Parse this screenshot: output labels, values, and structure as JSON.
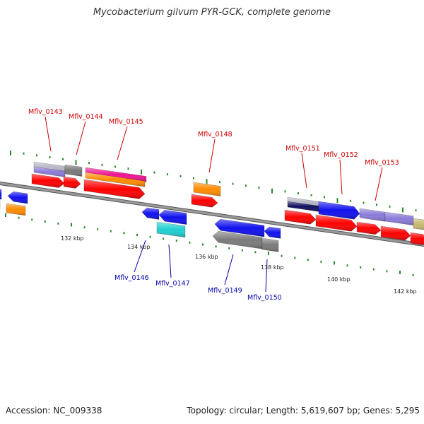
{
  "title": "Mycobacterium gilvum PYR-GCK, complete genome",
  "footer": {
    "accession": "Accession: NC_009338",
    "summary": "Topology: circular; Length: 5,619,607 bp; Genes: 5,295"
  },
  "colors": {
    "backbone": "#8a8a8a",
    "tick": "#2a8a2a",
    "label_forward": "#cc0000",
    "label_reverse": "#0000aa",
    "red": "#ff0000",
    "blue": "#1010ee",
    "orange": "#ff8c00",
    "magenta": "#ee1493",
    "gray": "#7a7a7a",
    "cyan": "#20d0d0",
    "lavender": "#8a7ad8",
    "khaki": "#c8b870",
    "silver": "#b8b8c8",
    "navy": "#101060"
  },
  "scale_labels": [
    "132 kbp",
    "134 kbp",
    "136 kbp",
    "138 kbp",
    "140 kbp",
    "142 kbp"
  ],
  "gene_labels": [
    "Mflv_0143",
    "Mflv_0144",
    "Mflv_0145",
    "Mflv_0148",
    "Mflv_0151",
    "Mflv_0152",
    "Mflv_0153",
    "Mflv_0146",
    "Mflv_0147",
    "Mflv_0149",
    "Mflv_0150"
  ]
}
